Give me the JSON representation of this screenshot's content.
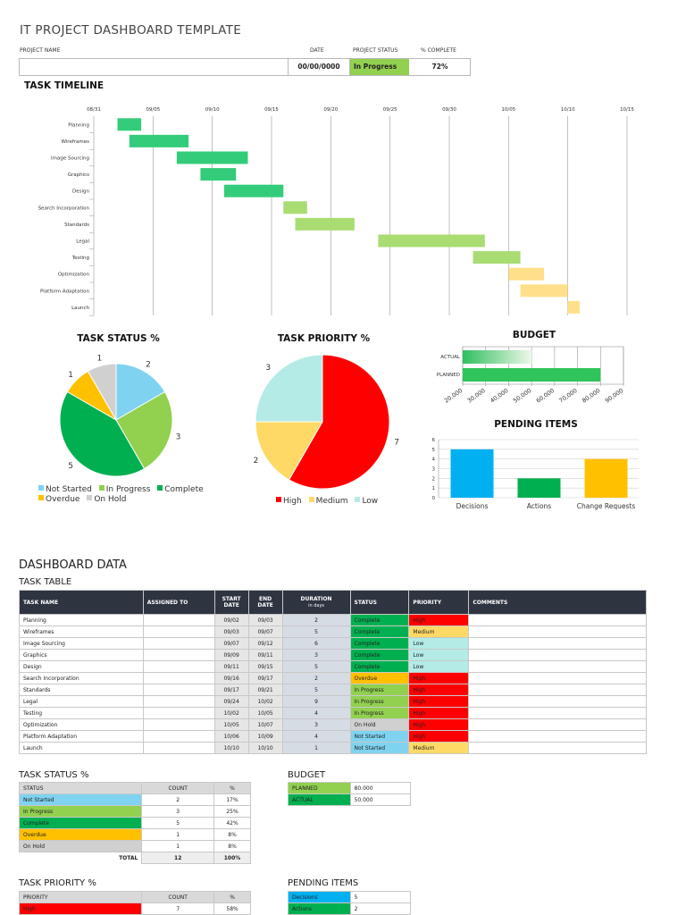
{
  "header": {
    "title": "IT PROJECT DASHBOARD TEMPLATE",
    "project_name_label": "PROJECT NAME",
    "date_label": "DATE",
    "status_label": "PROJECT  STATUS",
    "complete_label": "% COMPLETE",
    "project_name_value": "",
    "date_value": "00/00/0000",
    "status_value": "In Progress",
    "complete_value": "72%"
  },
  "colors": {
    "not_started": "#7fd3f0",
    "in_progress": "#92d050",
    "complete": "#00b050",
    "overdue": "#ffc000",
    "on_hold": "#d0d0d0",
    "high": "#ff0000",
    "medium": "#ffd966",
    "low": "#b4ebe6",
    "decisions": "#00b0f0"
  },
  "timeline": {
    "title": "TASK TIMELINE",
    "date_ticks": [
      "08/31",
      "09/05",
      "09/10",
      "09/15",
      "09/20",
      "09/25",
      "09/30",
      "10/05",
      "10/10",
      "10/15"
    ],
    "tasks": [
      "Planning",
      "Wireframes",
      "Image Sourcing",
      "Graphics",
      "Design",
      "Search Incorporation",
      "Standards",
      "Legal",
      "Testing",
      "Optimization",
      "Platform Adaptation",
      "Launch"
    ]
  },
  "status_chart_title": "TASK STATUS %",
  "priority_chart_title": "TASK PRIORITY %",
  "budget_chart_title": "BUDGET",
  "pending_chart_title": "PENDING ITEMS",
  "chart_data": [
    {
      "type": "bar",
      "title": "TASK TIMELINE",
      "orientation": "horizontal-gantt",
      "categories": [
        "Planning",
        "Wireframes",
        "Image Sourcing",
        "Graphics",
        "Design",
        "Search Incorporation",
        "Standards",
        "Legal",
        "Testing",
        "Optimization",
        "Platform Adaptation",
        "Launch"
      ],
      "start": [
        "09/02",
        "09/03",
        "09/07",
        "09/09",
        "09/11",
        "09/16",
        "09/17",
        "09/24",
        "10/02",
        "10/05",
        "10/06",
        "10/10"
      ],
      "duration_days": [
        2,
        5,
        6,
        3,
        5,
        2,
        5,
        9,
        4,
        3,
        4,
        1
      ],
      "status": [
        "Complete",
        "Complete",
        "Complete",
        "Complete",
        "Complete",
        "Overdue",
        "In Progress",
        "In Progress",
        "In Progress",
        "On Hold",
        "Not Started",
        "Not Started"
      ],
      "xlim": [
        "08/31",
        "10/15"
      ],
      "grid": true
    },
    {
      "type": "pie",
      "title": "TASK STATUS %",
      "categories": [
        "Not Started",
        "In Progress",
        "Complete",
        "Overdue",
        "On Hold"
      ],
      "values": [
        2,
        3,
        5,
        1,
        1
      ],
      "legend": "bottom"
    },
    {
      "type": "pie",
      "title": "TASK PRIORITY %",
      "categories": [
        "High",
        "Medium",
        "Low"
      ],
      "values": [
        7,
        2,
        3
      ],
      "legend": "bottom"
    },
    {
      "type": "bar",
      "title": "BUDGET",
      "orientation": "horizontal",
      "categories": [
        "ACTUAL",
        "PLANNED"
      ],
      "values": [
        50000,
        80000
      ],
      "xlim": [
        20000,
        90000
      ],
      "ticks": [
        "20,000",
        "30,000",
        "40,000",
        "50,000",
        "60,000",
        "70,000",
        "80,000",
        "90,000"
      ],
      "grid": true
    },
    {
      "type": "bar",
      "title": "PENDING ITEMS",
      "categories": [
        "Decisions",
        "Actions",
        "Change Requests"
      ],
      "values": [
        5,
        2,
        4
      ],
      "ylim": [
        0,
        6
      ],
      "ticks": [
        "0",
        "1",
        "2",
        "3",
        "4",
        "5",
        "6"
      ],
      "grid": true
    }
  ],
  "data_section": {
    "title": "DASHBOARD DATA",
    "task_table_title": "TASK TABLE",
    "columns": {
      "task": "TASK NAME",
      "assigned": "ASSIGNED TO",
      "start1": "START",
      "start2": "DATE",
      "end1": "END",
      "end2": "DATE",
      "dur1": "DURATION",
      "dur2": "in days",
      "status": "STATUS",
      "priority": "PRIORITY",
      "comments": "COMMENTS"
    },
    "rows": [
      {
        "task": "Planning",
        "start": "09/02",
        "end": "09/03",
        "dur": "2",
        "status": "Complete",
        "priority": "High"
      },
      {
        "task": "Wireframes",
        "start": "09/03",
        "end": "09/07",
        "dur": "5",
        "status": "Complete",
        "priority": "Medium"
      },
      {
        "task": "Image Sourcing",
        "start": "09/07",
        "end": "09/12",
        "dur": "6",
        "status": "Complete",
        "priority": "Low"
      },
      {
        "task": "Graphics",
        "start": "09/09",
        "end": "09/11",
        "dur": "3",
        "status": "Complete",
        "priority": "Low"
      },
      {
        "task": "Design",
        "start": "09/11",
        "end": "09/15",
        "dur": "5",
        "status": "Complete",
        "priority": "Low"
      },
      {
        "task": "Search Incorporation",
        "start": "09/16",
        "end": "09/17",
        "dur": "2",
        "status": "Overdue",
        "priority": "High"
      },
      {
        "task": "Standards",
        "start": "09/17",
        "end": "09/21",
        "dur": "5",
        "status": "In Progress",
        "priority": "High"
      },
      {
        "task": "Legal",
        "start": "09/24",
        "end": "10/02",
        "dur": "9",
        "status": "In Progress",
        "priority": "High"
      },
      {
        "task": "Testing",
        "start": "10/02",
        "end": "10/05",
        "dur": "4",
        "status": "In Progress",
        "priority": "High"
      },
      {
        "task": "Optimization",
        "start": "10/05",
        "end": "10/07",
        "dur": "3",
        "status": "On Hold",
        "priority": "High"
      },
      {
        "task": "Platform Adaptation",
        "start": "10/06",
        "end": "10/09",
        "dur": "4",
        "status": "Not Started",
        "priority": "High"
      },
      {
        "task": "Launch",
        "start": "10/10",
        "end": "10/10",
        "dur": "1",
        "status": "Not Started",
        "priority": "Medium"
      }
    ],
    "status_table": {
      "title": "TASK STATUS %",
      "col_status": "STATUS",
      "col_count": "COUNT",
      "col_pct": "%",
      "rows": [
        {
          "label": "Not Started",
          "count": "2",
          "pct": "17%"
        },
        {
          "label": "In Progress",
          "count": "3",
          "pct": "25%"
        },
        {
          "label": "Complete",
          "count": "5",
          "pct": "42%"
        },
        {
          "label": "Overdue",
          "count": "1",
          "pct": "8%"
        },
        {
          "label": "On Hold",
          "count": "1",
          "pct": "8%"
        }
      ],
      "total_label": "TOTAL",
      "total_count": "12",
      "total_pct": "100%"
    },
    "budget_table": {
      "title": "BUDGET",
      "planned_label": "PLANNED",
      "planned_value": "80.000",
      "actual_label": "ACTUAL",
      "actual_value": "50.000"
    },
    "priority_table": {
      "title": "TASK PRIORITY %",
      "col_priority": "PRIORITY",
      "col_count": "COUNT",
      "col_pct": "%",
      "first_label": "High",
      "first_count": "7",
      "first_pct": "58%"
    },
    "pending_table": {
      "title": "PENDING ITEMS",
      "decisions_label": "Decisions",
      "decisions_value": "5",
      "actions_label": "Actions",
      "actions_value": "2"
    }
  }
}
